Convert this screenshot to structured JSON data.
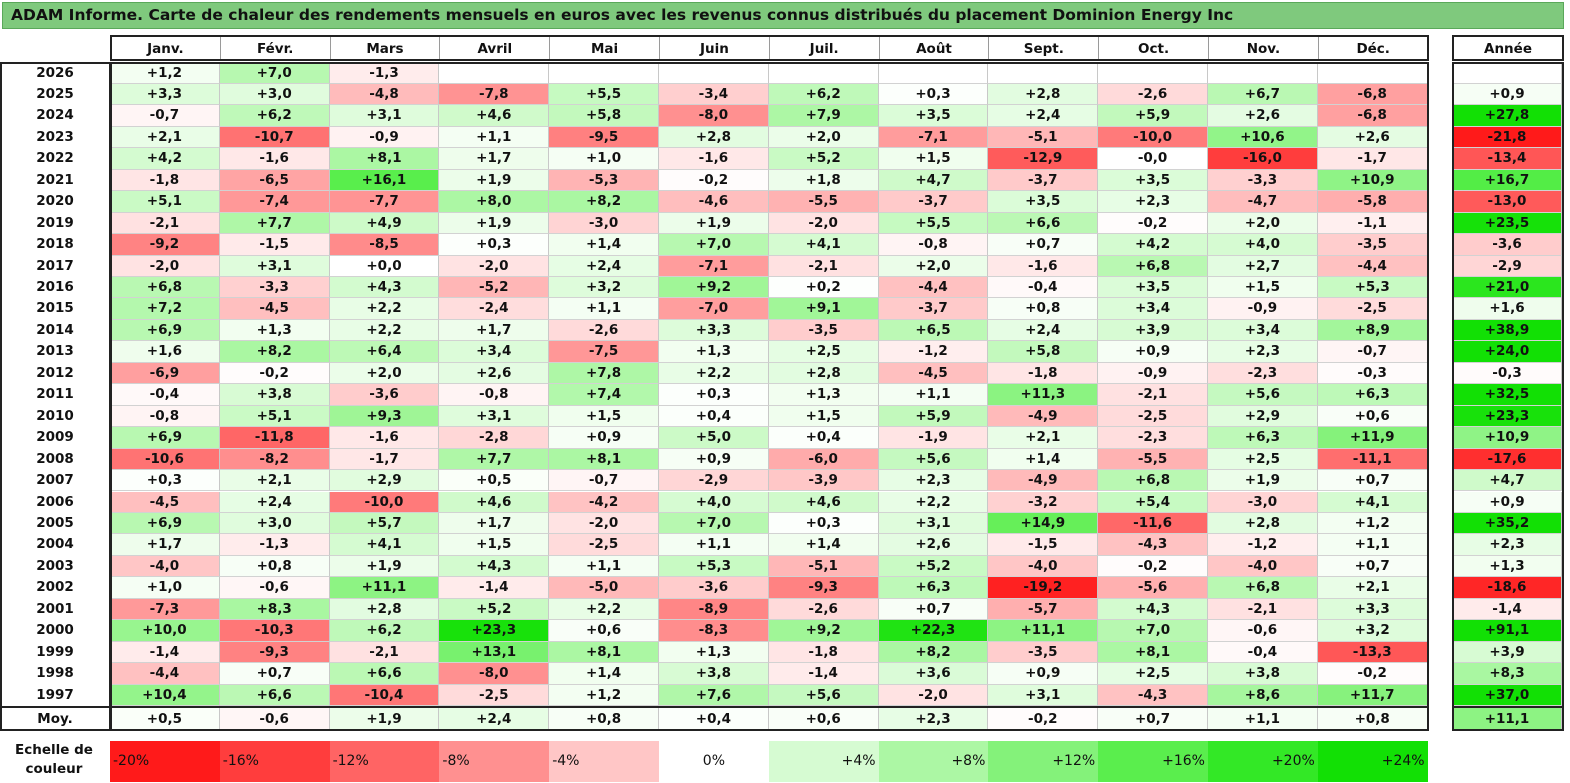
{
  "title": "ADAM Informe. Carte de chaleur des rendements mensuels en euros avec les revenus connus distribués du placement Dominion Energy Inc",
  "chart_data": {
    "type": "heatmap",
    "title": "ADAM Informe. Carte de chaleur des rendements mensuels en euros avec les revenus connus distribués du placement Dominion Energy Inc",
    "columns": [
      "Janv.",
      "Févr.",
      "Mars",
      "Avril",
      "Mai",
      "Juin",
      "Juil.",
      "Août",
      "Sept.",
      "Oct.",
      "Nov.",
      "Déc."
    ],
    "year_column": "Année",
    "rows": [
      {
        "year": "2026",
        "months": [
          "+1,2",
          "+7,0",
          "-1,3",
          "",
          "",
          "",
          "",
          "",
          "",
          "",
          "",
          ""
        ],
        "annual": ""
      },
      {
        "year": "2025",
        "months": [
          "+3,3",
          "+3,0",
          "-4,8",
          "-7,8",
          "+5,5",
          "-3,4",
          "+6,2",
          "+0,3",
          "+2,8",
          "-2,6",
          "+6,7",
          "-6,8"
        ],
        "annual": "+0,9"
      },
      {
        "year": "2024",
        "months": [
          "-0,7",
          "+6,2",
          "+3,1",
          "+4,6",
          "+5,8",
          "-8,0",
          "+7,9",
          "+3,5",
          "+2,4",
          "+5,9",
          "+2,6",
          "-6,8"
        ],
        "annual": "+27,8"
      },
      {
        "year": "2023",
        "months": [
          "+2,1",
          "-10,7",
          "-0,9",
          "+1,1",
          "-9,5",
          "+2,8",
          "+2,0",
          "-7,1",
          "-5,1",
          "-10,0",
          "+10,6",
          "+2,6"
        ],
        "annual": "-21,8"
      },
      {
        "year": "2022",
        "months": [
          "+4,2",
          "-1,6",
          "+8,1",
          "+1,7",
          "+1,0",
          "-1,6",
          "+5,2",
          "+1,5",
          "-12,9",
          "-0,0",
          "-16,0",
          "-1,7"
        ],
        "annual": "-13,4"
      },
      {
        "year": "2021",
        "months": [
          "-1,8",
          "-6,5",
          "+16,1",
          "+1,9",
          "-5,3",
          "-0,2",
          "+1,8",
          "+4,7",
          "-3,7",
          "+3,5",
          "-3,3",
          "+10,9"
        ],
        "annual": "+16,7"
      },
      {
        "year": "2020",
        "months": [
          "+5,1",
          "-7,4",
          "-7,7",
          "+8,0",
          "+8,2",
          "-4,6",
          "-5,5",
          "-3,7",
          "+3,5",
          "+2,3",
          "-4,7",
          "-5,8"
        ],
        "annual": "-13,0"
      },
      {
        "year": "2019",
        "months": [
          "-2,1",
          "+7,7",
          "+4,9",
          "+1,9",
          "-3,0",
          "+1,9",
          "-2,0",
          "+5,5",
          "+6,6",
          "-0,2",
          "+2,0",
          "-1,1"
        ],
        "annual": "+23,5"
      },
      {
        "year": "2018",
        "months": [
          "-9,2",
          "-1,5",
          "-8,5",
          "+0,3",
          "+1,4",
          "+7,0",
          "+4,1",
          "-0,8",
          "+0,7",
          "+4,2",
          "+4,0",
          "-3,5"
        ],
        "annual": "-3,6"
      },
      {
        "year": "2017",
        "months": [
          "-2,0",
          "+3,1",
          "+0,0",
          "-2,0",
          "+2,4",
          "-7,1",
          "-2,1",
          "+2,0",
          "-1,6",
          "+6,8",
          "+2,7",
          "-4,4"
        ],
        "annual": "-2,9"
      },
      {
        "year": "2016",
        "months": [
          "+6,8",
          "-3,3",
          "+4,3",
          "-5,2",
          "+3,2",
          "+9,2",
          "+0,2",
          "-4,4",
          "-0,4",
          "+3,5",
          "+1,5",
          "+5,3"
        ],
        "annual": "+21,0"
      },
      {
        "year": "2015",
        "months": [
          "+7,2",
          "-4,5",
          "+2,2",
          "-2,4",
          "+1,1",
          "-7,0",
          "+9,1",
          "-3,7",
          "+0,8",
          "+3,4",
          "-0,9",
          "-2,5"
        ],
        "annual": "+1,6"
      },
      {
        "year": "2014",
        "months": [
          "+6,9",
          "+1,3",
          "+2,2",
          "+1,7",
          "-2,6",
          "+3,3",
          "-3,5",
          "+6,5",
          "+2,4",
          "+3,9",
          "+3,4",
          "+8,9"
        ],
        "annual": "+38,9"
      },
      {
        "year": "2013",
        "months": [
          "+1,6",
          "+8,2",
          "+6,4",
          "+3,4",
          "-7,5",
          "+1,3",
          "+2,5",
          "-1,2",
          "+5,8",
          "+0,9",
          "+2,3",
          "-0,7"
        ],
        "annual": "+24,0"
      },
      {
        "year": "2012",
        "months": [
          "-6,9",
          "-0,2",
          "+2,0",
          "+2,6",
          "+7,8",
          "+2,2",
          "+2,8",
          "-4,5",
          "-1,8",
          "-0,9",
          "-2,3",
          "-0,3"
        ],
        "annual": "-0,3"
      },
      {
        "year": "2011",
        "months": [
          "-0,4",
          "+3,8",
          "-3,6",
          "-0,8",
          "+7,4",
          "+0,3",
          "+1,3",
          "+1,1",
          "+11,3",
          "-2,1",
          "+5,6",
          "+6,3"
        ],
        "annual": "+32,5"
      },
      {
        "year": "2010",
        "months": [
          "-0,8",
          "+5,1",
          "+9,3",
          "+3,1",
          "+1,5",
          "+0,4",
          "+1,5",
          "+5,9",
          "-4,9",
          "-2,5",
          "+2,9",
          "+0,6"
        ],
        "annual": "+23,3"
      },
      {
        "year": "2009",
        "months": [
          "+6,9",
          "-11,8",
          "-1,6",
          "-2,8",
          "+0,9",
          "+5,0",
          "+0,4",
          "-1,9",
          "+2,1",
          "-2,3",
          "+6,3",
          "+11,9"
        ],
        "annual": "+10,9"
      },
      {
        "year": "2008",
        "months": [
          "-10,6",
          "-8,2",
          "-1,7",
          "+7,7",
          "+8,1",
          "+0,9",
          "-6,0",
          "+5,6",
          "+1,4",
          "-5,5",
          "+2,5",
          "-11,1"
        ],
        "annual": "-17,6"
      },
      {
        "year": "2007",
        "months": [
          "+0,3",
          "+2,1",
          "+2,9",
          "+0,5",
          "-0,7",
          "-2,9",
          "-3,9",
          "+2,3",
          "-4,9",
          "+6,8",
          "+1,9",
          "+0,7"
        ],
        "annual": "+4,7"
      },
      {
        "year": "2006",
        "months": [
          "-4,5",
          "+2,4",
          "-10,0",
          "+4,6",
          "-4,2",
          "+4,0",
          "+4,6",
          "+2,2",
          "-3,2",
          "+5,4",
          "-3,0",
          "+4,1"
        ],
        "annual": "+0,9"
      },
      {
        "year": "2005",
        "months": [
          "+6,9",
          "+3,0",
          "+5,7",
          "+1,7",
          "-2,0",
          "+7,0",
          "+0,3",
          "+3,1",
          "+14,9",
          "-11,6",
          "+2,8",
          "+1,2"
        ],
        "annual": "+35,2"
      },
      {
        "year": "2004",
        "months": [
          "+1,7",
          "-1,3",
          "+4,1",
          "+1,5",
          "-2,5",
          "+1,1",
          "+1,4",
          "+2,6",
          "-1,5",
          "-4,3",
          "-1,2",
          "+1,1"
        ],
        "annual": "+2,3"
      },
      {
        "year": "2003",
        "months": [
          "-4,0",
          "+0,8",
          "+1,9",
          "+4,3",
          "+1,1",
          "+5,3",
          "-5,1",
          "+5,2",
          "-4,0",
          "-0,2",
          "-4,0",
          "+0,7"
        ],
        "annual": "+1,3"
      },
      {
        "year": "2002",
        "months": [
          "+1,0",
          "-0,6",
          "+11,1",
          "-1,4",
          "-5,0",
          "-3,6",
          "-9,3",
          "+6,3",
          "-19,2",
          "-5,6",
          "+6,8",
          "+2,1"
        ],
        "annual": "-18,6"
      },
      {
        "year": "2001",
        "months": [
          "-7,3",
          "+8,3",
          "+2,8",
          "+5,2",
          "+2,2",
          "-8,9",
          "-2,6",
          "+0,7",
          "-5,7",
          "+4,3",
          "-2,1",
          "+3,3"
        ],
        "annual": "-1,4"
      },
      {
        "year": "2000",
        "months": [
          "+10,0",
          "-10,3",
          "+6,2",
          "+23,3",
          "+0,6",
          "-8,3",
          "+9,2",
          "+22,3",
          "+11,1",
          "+7,0",
          "-0,6",
          "+3,2"
        ],
        "annual": "+91,1"
      },
      {
        "year": "1999",
        "months": [
          "-1,4",
          "-9,3",
          "-2,1",
          "+13,1",
          "+8,1",
          "+1,3",
          "-1,8",
          "+8,2",
          "-3,5",
          "+8,1",
          "-0,4",
          "-13,3"
        ],
        "annual": "+3,9"
      },
      {
        "year": "1998",
        "months": [
          "-4,4",
          "+0,7",
          "+6,6",
          "-8,0",
          "+1,4",
          "+3,8",
          "-1,4",
          "+3,6",
          "+0,9",
          "+2,5",
          "+3,8",
          "-0,2"
        ],
        "annual": "+8,3"
      },
      {
        "year": "1997",
        "months": [
          "+10,4",
          "+6,6",
          "-10,4",
          "-2,5",
          "+1,2",
          "+7,6",
          "+5,6",
          "-2,0",
          "+3,1",
          "-4,3",
          "+8,6",
          "+11,7"
        ],
        "annual": "+37,0"
      }
    ],
    "average": {
      "label": "Moy.",
      "months": [
        "+0,5",
        "-0,6",
        "+1,9",
        "+2,4",
        "+0,8",
        "+0,4",
        "+0,6",
        "+2,3",
        "-0,2",
        "+0,7",
        "+1,1",
        "+0,8"
      ],
      "annual": "+11,1"
    },
    "scale": {
      "label_line1": "Echelle de",
      "label_line2": "couleur",
      "stops": [
        {
          "label": "-20%",
          "value": -20,
          "color": "#ff1a1a"
        },
        {
          "label": "-16%",
          "value": -16,
          "color": "#ff3d3d"
        },
        {
          "label": "-12%",
          "value": -12,
          "color": "#ff6464"
        },
        {
          "label": "-8%",
          "value": -8,
          "color": "#ff9090"
        },
        {
          "label": "-4%",
          "value": -4,
          "color": "#ffc6c6"
        },
        {
          "label": "0%",
          "value": 0,
          "color": "#ffffff"
        },
        {
          "label": "+4%",
          "value": 4,
          "color": "#d6fbd2"
        },
        {
          "label": "+8%",
          "value": 8,
          "color": "#acf7a4"
        },
        {
          "label": "+12%",
          "value": 12,
          "color": "#84f27a"
        },
        {
          "label": "+16%",
          "value": 16,
          "color": "#5aee4d"
        },
        {
          "label": "+20%",
          "value": 20,
          "color": "#33e826"
        },
        {
          "label": "+24%",
          "value": 24,
          "color": "#12e005"
        }
      ]
    }
  }
}
